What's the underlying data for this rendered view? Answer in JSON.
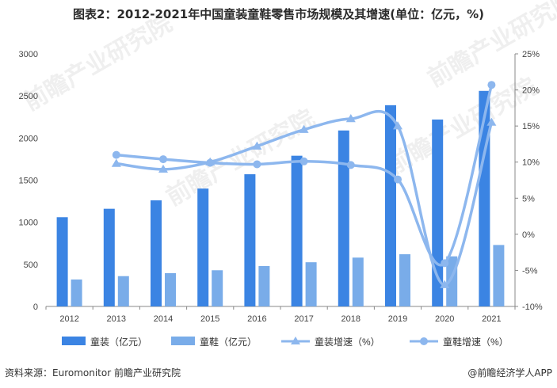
{
  "title": "图表2：2012-2021年中国童装童鞋零售市场规模及其增速(单位：亿元，%)",
  "source": "资料来源：Euromonitor 前瞻产业研究院",
  "credit": "@前瞻经济学人APP",
  "watermark": "前瞻产业研究院",
  "colors": {
    "clothing_bar": "#3b84e3",
    "shoes_bar": "#79ace9",
    "clothing_growth": "#8db7ee",
    "shoes_growth": "#8db7ee"
  },
  "chart_data": {
    "type": "bar",
    "categories": [
      "2012",
      "2013",
      "2014",
      "2015",
      "2016",
      "2017",
      "2018",
      "2019",
      "2020",
      "2021"
    ],
    "series": [
      {
        "name": "童装（亿元）",
        "kind": "bar",
        "axis": "left",
        "values": [
          1060,
          1160,
          1260,
          1400,
          1570,
          1790,
          2090,
          2390,
          2220,
          2560
        ]
      },
      {
        "name": "童鞋（亿元）",
        "kind": "bar",
        "axis": "left",
        "values": [
          320,
          360,
          395,
          430,
          480,
          525,
          580,
          620,
          595,
          730
        ]
      },
      {
        "name": "童装增速（%）",
        "kind": "line",
        "marker": "triangle",
        "axis": "right",
        "values": [
          null,
          9.8,
          9.0,
          10.0,
          12.2,
          14.5,
          16.0,
          15.0,
          -7.0,
          15.5
        ]
      },
      {
        "name": "童鞋增速（%）",
        "kind": "line",
        "marker": "circle",
        "axis": "right",
        "values": [
          null,
          11.0,
          10.4,
          9.9,
          9.7,
          10.1,
          9.6,
          7.6,
          -4.0,
          20.7
        ]
      }
    ],
    "y_left": {
      "lim": [
        0,
        3000
      ],
      "ticks": [
        "0",
        "500",
        "1000",
        "1500",
        "2000",
        "2500",
        "3000"
      ]
    },
    "y_right": {
      "lim": [
        -10,
        25
      ],
      "ticks": [
        "-10%",
        "-5%",
        "0%",
        "5%",
        "10%",
        "15%",
        "20%",
        "25%"
      ]
    },
    "grid": false,
    "legend": "bottom"
  }
}
